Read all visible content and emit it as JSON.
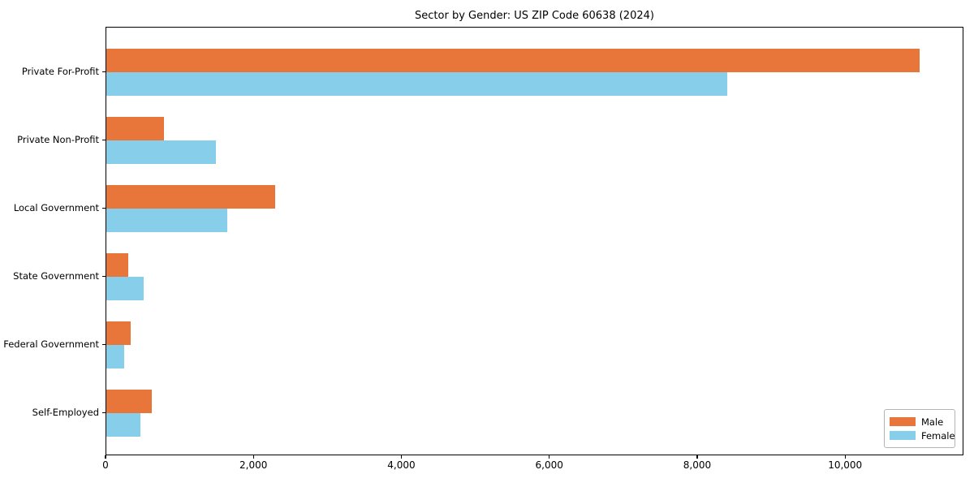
{
  "title": "Sector by Gender: US ZIP Code 60638 (2024)",
  "colors": {
    "male": "#e8763b",
    "female": "#87ceeb",
    "axis": "#000000",
    "legend_border": "#b4b4b4",
    "background": "#ffffff",
    "text": "#000000"
  },
  "chart_data": {
    "type": "bar",
    "orientation": "horizontal",
    "title": "Sector by Gender: US ZIP Code 60638 (2024)",
    "categories": [
      "Private For-Profit",
      "Private Non-Profit",
      "Local Government",
      "State Government",
      "Federal Government",
      "Self-Employed"
    ],
    "series": [
      {
        "name": "Male",
        "color": "#e8763b",
        "values": [
          11000,
          780,
          2280,
          300,
          330,
          620
        ]
      },
      {
        "name": "Female",
        "color": "#87ceeb",
        "values": [
          8400,
          1480,
          1630,
          510,
          240,
          460
        ]
      }
    ],
    "xlabel": "",
    "ylabel": "",
    "xlim": [
      0,
      11600
    ],
    "xticks": [
      0,
      2000,
      4000,
      6000,
      8000,
      10000
    ],
    "xtick_labels": [
      "0",
      "2,000",
      "4,000",
      "6,000",
      "8,000",
      "10,000"
    ],
    "legend_position": "lower right",
    "legend_labels": [
      "Male",
      "Female"
    ],
    "grid": false
  }
}
